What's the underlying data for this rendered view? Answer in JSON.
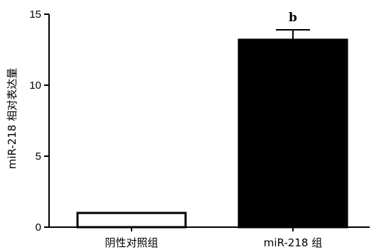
{
  "chart_data": {
    "type": "bar",
    "categories": [
      "阴性对照组",
      "miR-218 组"
    ],
    "values": [
      1.0,
      13.2
    ],
    "errors": [
      0,
      0.7
    ],
    "bar_colors": [
      "#ffffff",
      "#000000"
    ],
    "annotations": [
      "",
      "b"
    ],
    "ylabel": "miR-218 相对表达量",
    "ylim": [
      0,
      15
    ],
    "yticks": [
      "0",
      "5",
      "10",
      "15"
    ],
    "grid": false
  }
}
